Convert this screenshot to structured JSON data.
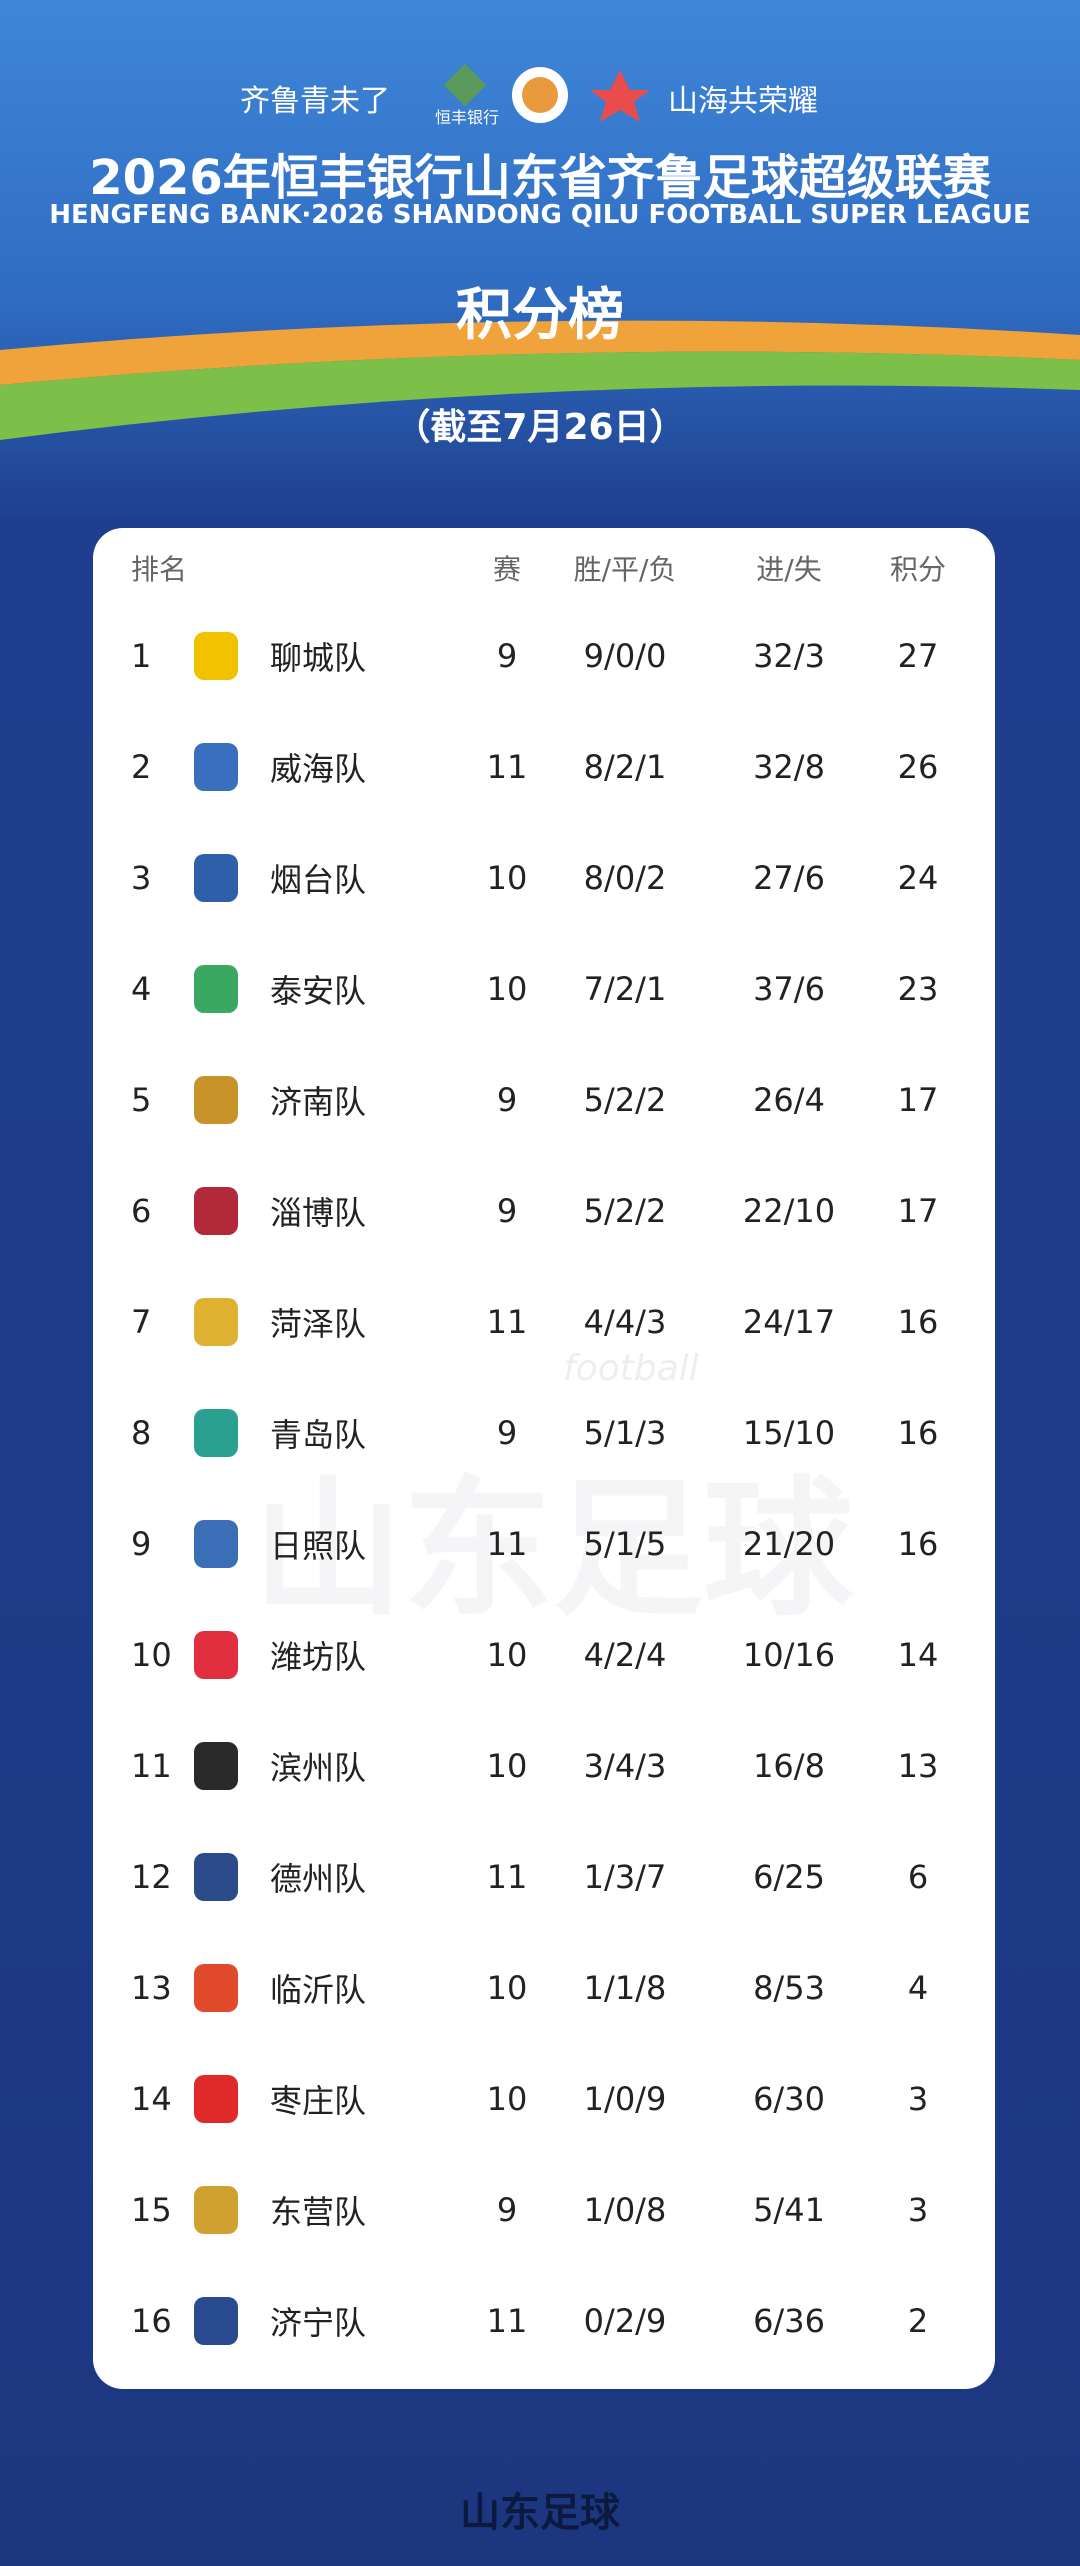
{
  "header": {
    "slogan_left": "齐鲁青未了",
    "sponsor": "恒丰银行",
    "slogan_right": "山海共荣耀",
    "title": "2026年恒丰银行山东省齐鲁足球超级联赛",
    "subtitle": "HENGFENG BANK·2026 SHANDONG QILU FOOTBALL SUPER LEAGUE",
    "heading": "积分榜",
    "date_note": "（截至7月26日）"
  },
  "table": {
    "columns": [
      "排名",
      "赛",
      "胜/平/负",
      "进/失",
      "积分"
    ],
    "rows": [
      [
        1,
        "聊城队",
        9,
        "9/0/0",
        "32/3",
        27
      ],
      [
        2,
        "威海队",
        11,
        "8/2/1",
        "32/8",
        26
      ],
      [
        3,
        "烟台队",
        10,
        "8/0/2",
        "27/6",
        24
      ],
      [
        4,
        "泰安队",
        10,
        "7/2/1",
        "37/6",
        23
      ],
      [
        5,
        "济南队",
        9,
        "5/2/2",
        "26/4",
        17
      ],
      [
        6,
        "淄博队",
        9,
        "5/2/2",
        "22/10",
        17
      ],
      [
        7,
        "菏泽队",
        11,
        "4/4/3",
        "24/17",
        16
      ],
      [
        8,
        "青岛队",
        9,
        "5/1/3",
        "15/10",
        16
      ],
      [
        9,
        "日照队",
        11,
        "5/1/5",
        "21/20",
        16
      ],
      [
        10,
        "潍坊队",
        10,
        "4/2/4",
        "10/16",
        14
      ],
      [
        11,
        "滨州队",
        10,
        "3/4/3",
        "16/8",
        13
      ],
      [
        12,
        "德州队",
        11,
        "1/3/7",
        "6/25",
        6
      ],
      [
        13,
        "临沂队",
        10,
        "1/1/8",
        "8/53",
        4
      ],
      [
        14,
        "枣庄队",
        10,
        "1/0/9",
        "6/30",
        3
      ],
      [
        15,
        "东营队",
        9,
        "1/0/8",
        "5/41",
        3
      ],
      [
        16,
        "济宁队",
        11,
        "0/2/9",
        "6/36",
        2
      ]
    ]
  },
  "watermark": {
    "brand": "山东足球",
    "word": "football"
  },
  "footer": {
    "brand": "山东足球"
  }
}
